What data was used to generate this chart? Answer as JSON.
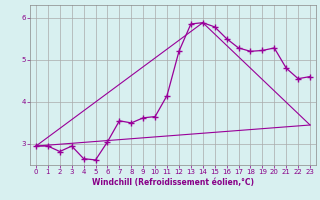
{
  "xlabel": "Windchill (Refroidissement éolien,°C)",
  "background_color": "#d8f0f0",
  "line_color": "#990099",
  "xlim": [
    -0.5,
    23.5
  ],
  "ylim": [
    2.5,
    6.3
  ],
  "yticks": [
    3,
    4,
    5,
    6
  ],
  "xticks": [
    0,
    1,
    2,
    3,
    4,
    5,
    6,
    7,
    8,
    9,
    10,
    11,
    12,
    13,
    14,
    15,
    16,
    17,
    18,
    19,
    20,
    21,
    22,
    23
  ],
  "series1_x": [
    0,
    1,
    2,
    3,
    4,
    5,
    6,
    7,
    8,
    9,
    10,
    11,
    12,
    13,
    14,
    15,
    16,
    17,
    18,
    19,
    20,
    21,
    22,
    23
  ],
  "series1_y": [
    2.95,
    2.95,
    2.82,
    2.95,
    2.65,
    2.62,
    3.05,
    3.55,
    3.5,
    3.62,
    3.65,
    4.15,
    5.2,
    5.85,
    5.88,
    5.78,
    5.5,
    5.28,
    5.2,
    5.22,
    5.28,
    4.8,
    4.55,
    4.6
  ],
  "series2_x": [
    0,
    14,
    23
  ],
  "series2_y": [
    2.95,
    5.88,
    3.45
  ],
  "series3_x": [
    0,
    23
  ],
  "series3_y": [
    2.95,
    3.45
  ],
  "grid_color": "#aaaaaa",
  "tick_color": "#880088",
  "label_color": "#880088",
  "tick_fontsize": 5.0,
  "xlabel_fontsize": 5.5
}
